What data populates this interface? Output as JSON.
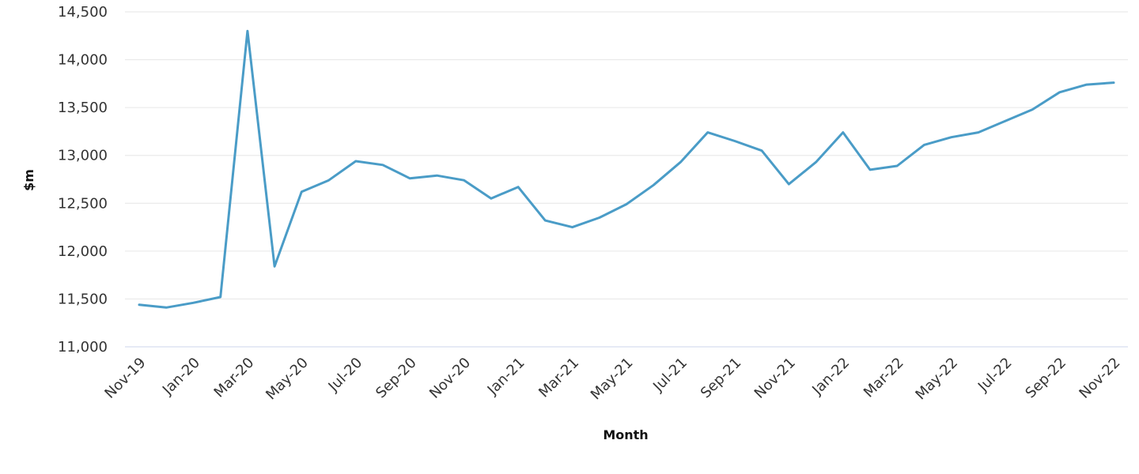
{
  "chart_data": {
    "type": "line",
    "title": "",
    "xlabel": "Month",
    "ylabel": "$m",
    "ylim": [
      11000,
      14500
    ],
    "yticks": [
      11000,
      11500,
      12000,
      12500,
      13000,
      13500,
      14000,
      14500
    ],
    "ytick_labels": [
      "11,000",
      "11,500",
      "12,000",
      "12,500",
      "13,000",
      "13,500",
      "14,000",
      "14,500"
    ],
    "grid": true,
    "legend": "none",
    "line_color": "#4a9cc7",
    "x": [
      "Nov-19",
      "Dec-19",
      "Jan-20",
      "Feb-20",
      "Mar-20",
      "Apr-20",
      "May-20",
      "Jun-20",
      "Jul-20",
      "Aug-20",
      "Sep-20",
      "Oct-20",
      "Nov-20",
      "Dec-20",
      "Jan-21",
      "Feb-21",
      "Mar-21",
      "Apr-21",
      "May-21",
      "Jun-21",
      "Jul-21",
      "Aug-21",
      "Sep-21",
      "Oct-21",
      "Nov-21",
      "Dec-21",
      "Jan-22",
      "Feb-22",
      "Mar-22",
      "Apr-22",
      "May-22",
      "Jun-22",
      "Jul-22",
      "Aug-22",
      "Sep-22",
      "Oct-22",
      "Nov-22"
    ],
    "x_tick_labels": [
      "Nov-19",
      "Jan-20",
      "Mar-20",
      "May-20",
      "Jul-20",
      "Sep-20",
      "Nov-20",
      "Jan-21",
      "Mar-21",
      "May-21",
      "Jul-21",
      "Sep-21",
      "Nov-21",
      "Jan-22",
      "Mar-22",
      "May-22",
      "Jul-22",
      "Sep-22",
      "Nov-22"
    ],
    "series": [
      {
        "values": [
          11440,
          11410,
          11460,
          11520,
          14300,
          11840,
          12620,
          12740,
          12940,
          12900,
          12760,
          12790,
          12740,
          12550,
          12670,
          12320,
          12250,
          12350,
          12490,
          12690,
          12930,
          13240,
          13150,
          13050,
          12700,
          12930,
          13240,
          12850,
          12890,
          13110,
          13190,
          13240,
          13360,
          13480,
          13660,
          13740,
          13760
        ]
      }
    ]
  }
}
